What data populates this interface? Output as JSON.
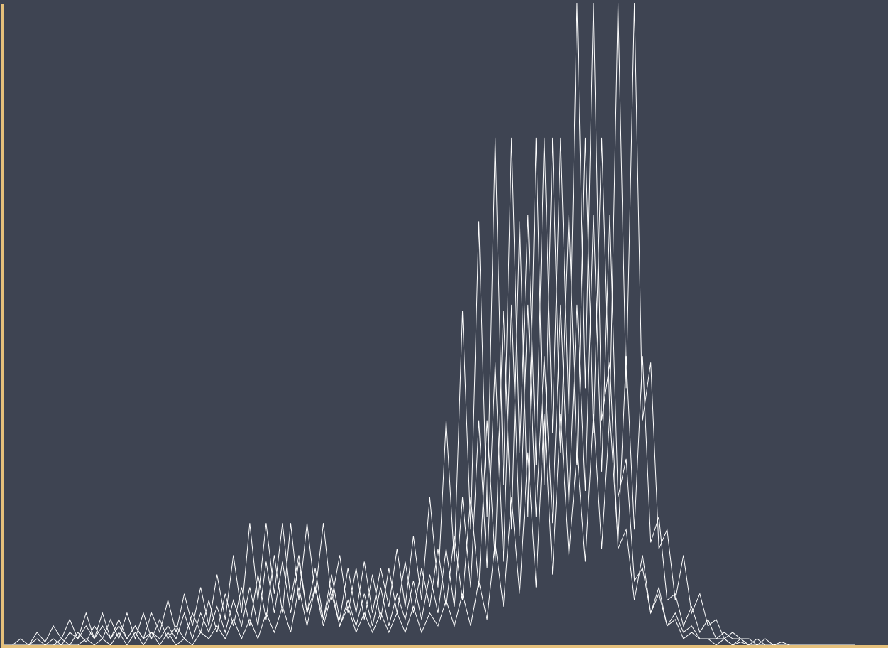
{
  "chart_data": {
    "type": "line",
    "x": [
      0,
      1,
      2,
      3,
      4,
      5,
      6,
      7,
      8,
      9,
      10,
      11,
      12,
      13,
      14,
      15,
      16,
      17,
      18,
      19,
      20,
      21,
      22,
      23,
      24,
      25,
      26,
      27,
      28,
      29,
      30,
      31,
      32,
      33,
      34,
      35,
      36,
      37,
      38,
      39,
      40,
      41,
      42,
      43,
      44,
      45,
      46,
      47,
      48,
      49,
      50,
      51,
      52,
      53,
      54,
      55,
      56,
      57,
      58,
      59,
      60,
      61,
      62,
      63,
      64,
      65,
      66,
      67,
      68,
      69,
      70,
      71,
      72,
      73,
      74,
      75,
      76,
      77,
      78,
      79,
      80,
      81,
      82,
      83,
      84,
      85,
      86,
      87,
      88,
      89,
      90,
      91,
      92,
      93,
      94,
      95,
      96,
      97,
      98,
      99,
      100,
      101,
      102,
      103,
      104
    ],
    "xlim": [
      0,
      108
    ],
    "ylim": [
      0,
      100
    ],
    "axis_color": "#e5c07b",
    "series": [
      {
        "color": "#ffffff",
        "values": [
          0,
          0,
          1,
          0,
          2,
          0.5,
          3,
          1,
          4,
          1,
          5,
          1,
          5,
          1,
          4,
          1,
          3,
          1,
          5,
          2,
          7,
          2,
          8,
          3,
          9,
          3,
          11,
          4,
          14,
          5,
          19,
          7,
          19,
          8,
          19,
          7,
          14,
          5,
          12,
          4,
          11,
          4,
          12,
          5,
          13,
          5,
          12,
          6,
          15,
          6,
          17,
          7,
          23,
          9,
          35,
          13,
          52,
          18,
          66,
          20,
          79,
          25,
          79,
          30,
          67,
          28,
          79,
          33,
          79,
          36,
          100,
          40,
          100,
          35,
          44,
          15,
          18,
          7,
          14,
          5,
          8,
          3,
          4,
          1,
          2,
          1,
          1,
          0,
          1,
          0,
          0.5,
          0,
          0,
          0,
          0,
          0,
          0,
          0,
          0,
          0,
          0,
          0,
          0,
          0,
          0
        ]
      },
      {
        "color": "#ffffff",
        "values": [
          0,
          0,
          0,
          0,
          0,
          0,
          0,
          1,
          0,
          2,
          0.5,
          3,
          1,
          4,
          1,
          5,
          1,
          5,
          1,
          4,
          1,
          3,
          1,
          5,
          2,
          7,
          2,
          8,
          3,
          9,
          3,
          11,
          4,
          14,
          5,
          19,
          7,
          19,
          8,
          19,
          7,
          14,
          5,
          12,
          4,
          11,
          4,
          12,
          5,
          13,
          5,
          12,
          6,
          15,
          6,
          17,
          7,
          23,
          9,
          35,
          13,
          52,
          18,
          66,
          20,
          79,
          25,
          79,
          30,
          67,
          28,
          79,
          33,
          79,
          36,
          100,
          40,
          100,
          35,
          44,
          15,
          18,
          7,
          14,
          5,
          8,
          3,
          4,
          1,
          2,
          1,
          1,
          0,
          1,
          0,
          0.5,
          0,
          0,
          0,
          0,
          0,
          0,
          0,
          0,
          0
        ]
      },
      {
        "color": "#ffffff",
        "values": [
          0,
          0,
          0,
          0,
          1,
          0,
          1,
          0,
          2,
          1,
          3,
          1,
          3,
          1,
          3,
          1,
          3,
          1,
          2,
          1,
          3,
          1,
          5,
          1,
          5,
          2,
          6,
          2,
          7,
          3,
          9,
          3,
          13,
          5,
          13,
          5,
          13,
          5,
          9,
          3,
          8,
          3,
          7,
          3,
          8,
          3,
          9,
          3,
          8,
          4,
          10,
          4,
          11,
          5,
          15,
          6,
          23,
          9,
          35,
          12,
          44,
          13,
          53,
          17,
          53,
          20,
          45,
          19,
          53,
          22,
          53,
          24,
          67,
          27,
          67,
          23,
          29,
          10,
          12,
          5,
          9,
          3,
          5,
          2,
          3,
          1,
          1,
          1,
          1,
          0,
          1,
          0,
          0,
          0,
          0,
          0,
          0,
          0,
          0,
          0,
          0,
          0,
          0,
          0,
          0
        ]
      },
      {
        "color": "#ffffff",
        "values": [
          0,
          0,
          0,
          0,
          0,
          0,
          0,
          0,
          0,
          0,
          1,
          0,
          1,
          0,
          2,
          0,
          2,
          0,
          2,
          0,
          2,
          0,
          1,
          0,
          2,
          1,
          3,
          1,
          4,
          1,
          4,
          1,
          5,
          2,
          6,
          2,
          9,
          3,
          9,
          4,
          9,
          3,
          6,
          2,
          5,
          2,
          5,
          2,
          5,
          2,
          6,
          2,
          5,
          3,
          7,
          3,
          8,
          3,
          10,
          4,
          16,
          6,
          23,
          8,
          30,
          9,
          36,
          11,
          36,
          14,
          30,
          13,
          36,
          15,
          36,
          16,
          45,
          18,
          45,
          16,
          20,
          7,
          8,
          3,
          6,
          2,
          4,
          1,
          2,
          1,
          1,
          0,
          1,
          0,
          0,
          0,
          0,
          0,
          0,
          0,
          0,
          0,
          0,
          0,
          0
        ]
      }
    ]
  }
}
